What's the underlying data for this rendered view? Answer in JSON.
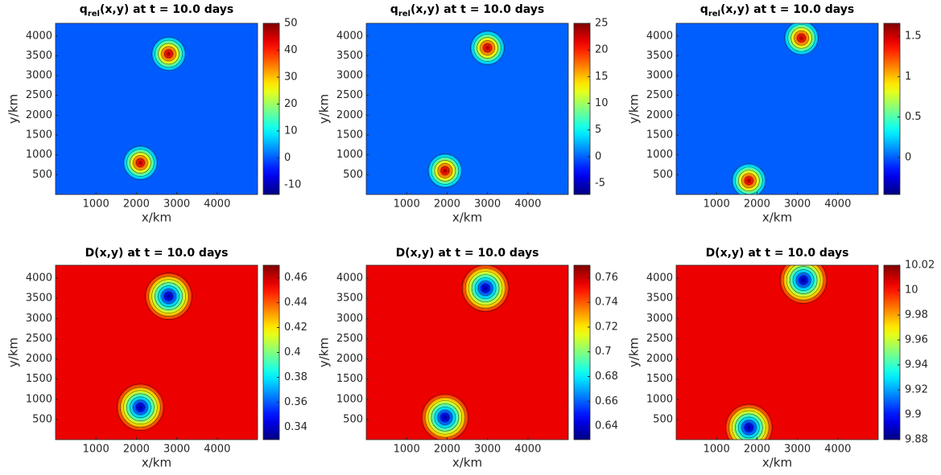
{
  "chart_data": [
    {
      "type": "heatmap",
      "title": {
        "main": "q",
        "sub": "rel",
        "rest": "(x,y) at t = 10.0 days"
      },
      "xlabel": "x/km",
      "ylabel": "y/km",
      "xlim": [
        0,
        5000
      ],
      "xticks": [
        1000,
        2000,
        3000,
        4000
      ],
      "ylim": [
        0,
        4320
      ],
      "yticks": [
        500,
        1000,
        1500,
        2000,
        2500,
        3000,
        3500,
        4000
      ],
      "colormap": "jet",
      "clim": [
        -13.6,
        50
      ],
      "cticks": [
        -10,
        0,
        10,
        20,
        30,
        40,
        50
      ],
      "background": 0,
      "peaks": [
        {
          "x": 2800,
          "y": 3550,
          "value": 50
        },
        {
          "x": 2100,
          "y": 800,
          "value": 50
        }
      ]
    },
    {
      "type": "heatmap",
      "title": {
        "main": "q",
        "sub": "rel",
        "rest": "(x,y) at t = 10.0 days"
      },
      "xlabel": "x/km",
      "ylabel": "y/km",
      "xlim": [
        0,
        5000
      ],
      "xticks": [
        1000,
        2000,
        3000,
        4000
      ],
      "ylim": [
        0,
        4320
      ],
      "yticks": [
        500,
        1000,
        1500,
        2000,
        2500,
        3000,
        3500,
        4000
      ],
      "colormap": "jet",
      "clim": [
        -7.1,
        25
      ],
      "cticks": [
        -5,
        0,
        5,
        10,
        15,
        20,
        25
      ],
      "background": 0,
      "peaks": [
        {
          "x": 3000,
          "y": 3700,
          "value": 25
        },
        {
          "x": 1950,
          "y": 600,
          "value": 25
        }
      ]
    },
    {
      "type": "heatmap",
      "title": {
        "main": "q",
        "sub": "rel",
        "rest": "(x,y) at t = 10.0 days"
      },
      "xlabel": "x/km",
      "ylabel": "y/km",
      "xlim": [
        0,
        5000
      ],
      "xticks": [
        1000,
        2000,
        3000,
        4000
      ],
      "ylim": [
        0,
        4320
      ],
      "yticks": [
        500,
        1000,
        1500,
        2000,
        2500,
        3000,
        3500,
        4000
      ],
      "colormap": "jet",
      "clim": [
        -0.46,
        1.66
      ],
      "cticks": [
        0,
        0.5,
        1,
        1.5
      ],
      "background": 0,
      "peaks": [
        {
          "x": 3100,
          "y": 3950,
          "value": 1.66
        },
        {
          "x": 1800,
          "y": 350,
          "value": 1.66
        }
      ]
    },
    {
      "type": "heatmap",
      "title": "D(x,y) at t = 10.0 days",
      "xlabel": "x/km",
      "ylabel": "y/km",
      "xlim": [
        0,
        5000
      ],
      "xticks": [
        1000,
        2000,
        3000,
        4000
      ],
      "ylim": [
        0,
        4320
      ],
      "yticks": [
        500,
        1000,
        1500,
        2000,
        2500,
        3000,
        3500,
        4000
      ],
      "colormap": "jet",
      "clim": [
        0.33,
        0.47
      ],
      "cticks": [
        0.34,
        0.36,
        0.38,
        0.4,
        0.42,
        0.44,
        0.46
      ],
      "background": 0.455,
      "peaks": [
        {
          "x": 2800,
          "y": 3550,
          "value": 0.33
        },
        {
          "x": 2100,
          "y": 800,
          "value": 0.33
        }
      ]
    },
    {
      "type": "heatmap",
      "title": "D(x,y) at t = 10.0 days",
      "xlabel": "x/km",
      "ylabel": "y/km",
      "xlim": [
        0,
        5000
      ],
      "xticks": [
        1000,
        2000,
        3000,
        4000
      ],
      "ylim": [
        0,
        4320
      ],
      "yticks": [
        500,
        1000,
        1500,
        2000,
        2500,
        3000,
        3500,
        4000
      ],
      "colormap": "jet",
      "clim": [
        0.629,
        0.77
      ],
      "cticks": [
        0.64,
        0.66,
        0.68,
        0.7,
        0.72,
        0.74,
        0.76
      ],
      "background": 0.755,
      "peaks": [
        {
          "x": 2950,
          "y": 3750,
          "value": 0.629
        },
        {
          "x": 1950,
          "y": 550,
          "value": 0.629
        }
      ]
    },
    {
      "type": "heatmap",
      "title": "D(x,y) at t = 10.0 days",
      "xlabel": "x/km",
      "ylabel": "y/km",
      "xlim": [
        0,
        5000
      ],
      "xticks": [
        1000,
        2000,
        3000,
        4000
      ],
      "ylim": [
        0,
        4320
      ],
      "yticks": [
        500,
        1000,
        1500,
        2000,
        2500,
        3000,
        3500,
        4000
      ],
      "colormap": "jet",
      "clim": [
        9.88,
        10.02
      ],
      "cticks": [
        9.88,
        9.9,
        9.92,
        9.94,
        9.96,
        9.98,
        10,
        10.02
      ],
      "background": 10.005,
      "peaks": [
        {
          "x": 3150,
          "y": 3950,
          "value": 9.88
        },
        {
          "x": 1800,
          "y": 300,
          "value": 9.88
        }
      ]
    }
  ]
}
